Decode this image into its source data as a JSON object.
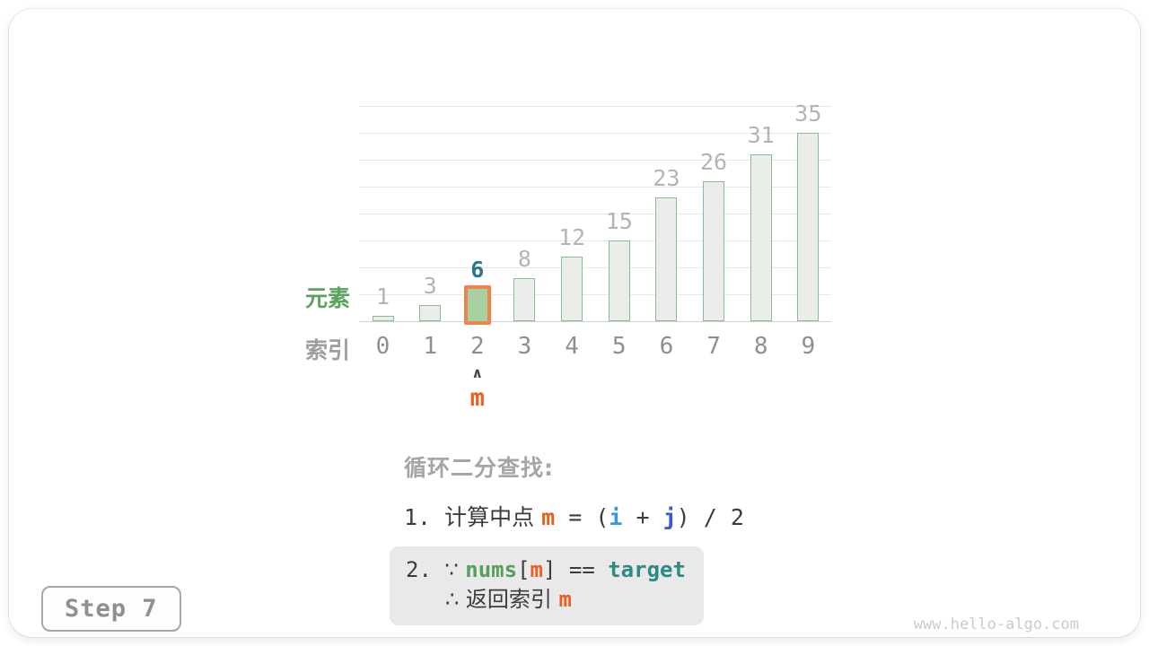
{
  "colors": {
    "orange": "#ea6020",
    "blue_i": "#2f9ae0",
    "blue_j": "#3a55e8",
    "green_code": "#56a05c",
    "teal_code": "#2d8a84",
    "bar_fill": "#ececea",
    "bar_border": "#8abd8e",
    "highlight_fill": "#a6cfa2",
    "highlight_border": "#f0824c",
    "value_label": "#b4b4b4",
    "highlight_value": "#27798a",
    "element_label": "#5ba15f",
    "gray_label": "#9e9e9e",
    "text_dark": "#3c3c3c",
    "note_title": "#a5a5a5",
    "box_bg": "#e9e9e9",
    "grid": "#e7e7e7"
  },
  "chart_data": {
    "type": "bar",
    "title": "",
    "categories": [
      "0",
      "1",
      "2",
      "3",
      "4",
      "5",
      "6",
      "7",
      "8",
      "9"
    ],
    "values": [
      1,
      3,
      6,
      8,
      12,
      15,
      23,
      26,
      31,
      35
    ],
    "highlight_index": 2,
    "xlabel": "索引",
    "ylabel": "元素",
    "ylim": [
      0,
      40
    ],
    "grid_step": 5,
    "grid": true,
    "legend": false
  },
  "pointer": {
    "caret": "∧",
    "label": "m"
  },
  "notes": {
    "title": "循环二分查找:",
    "step1": [
      {
        "text": "1. ",
        "mono": true
      },
      {
        "text": "计算中点 "
      },
      {
        "text": "m",
        "color": "orange",
        "mono": true,
        "bold": true
      },
      {
        "text": " = (",
        "mono": true
      },
      {
        "text": "i",
        "color": "blue_i",
        "mono": true,
        "bold": true
      },
      {
        "text": " + ",
        "mono": true
      },
      {
        "text": "j",
        "color": "blue_j",
        "mono": true,
        "bold": true
      },
      {
        "text": ") / 2",
        "mono": true
      }
    ],
    "step2_line1": [
      {
        "text": "2. ",
        "mono": true
      },
      {
        "text": "∵ "
      },
      {
        "text": "nums",
        "color": "green_code",
        "mono": true,
        "bold": true
      },
      {
        "text": "[",
        "mono": true
      },
      {
        "text": "m",
        "color": "orange",
        "mono": true,
        "bold": true
      },
      {
        "text": "]",
        "mono": true
      },
      {
        "text": " == ",
        "mono": true
      },
      {
        "text": "target",
        "color": "teal_code",
        "mono": true,
        "bold": true
      }
    ],
    "step2_line2": [
      {
        "text": "∴ "
      },
      {
        "text": "返回索引 "
      },
      {
        "text": "m",
        "color": "orange",
        "mono": true,
        "bold": true
      }
    ]
  },
  "footer": {
    "step_label": "Step 7",
    "watermark": "www.hello-algo.com"
  }
}
